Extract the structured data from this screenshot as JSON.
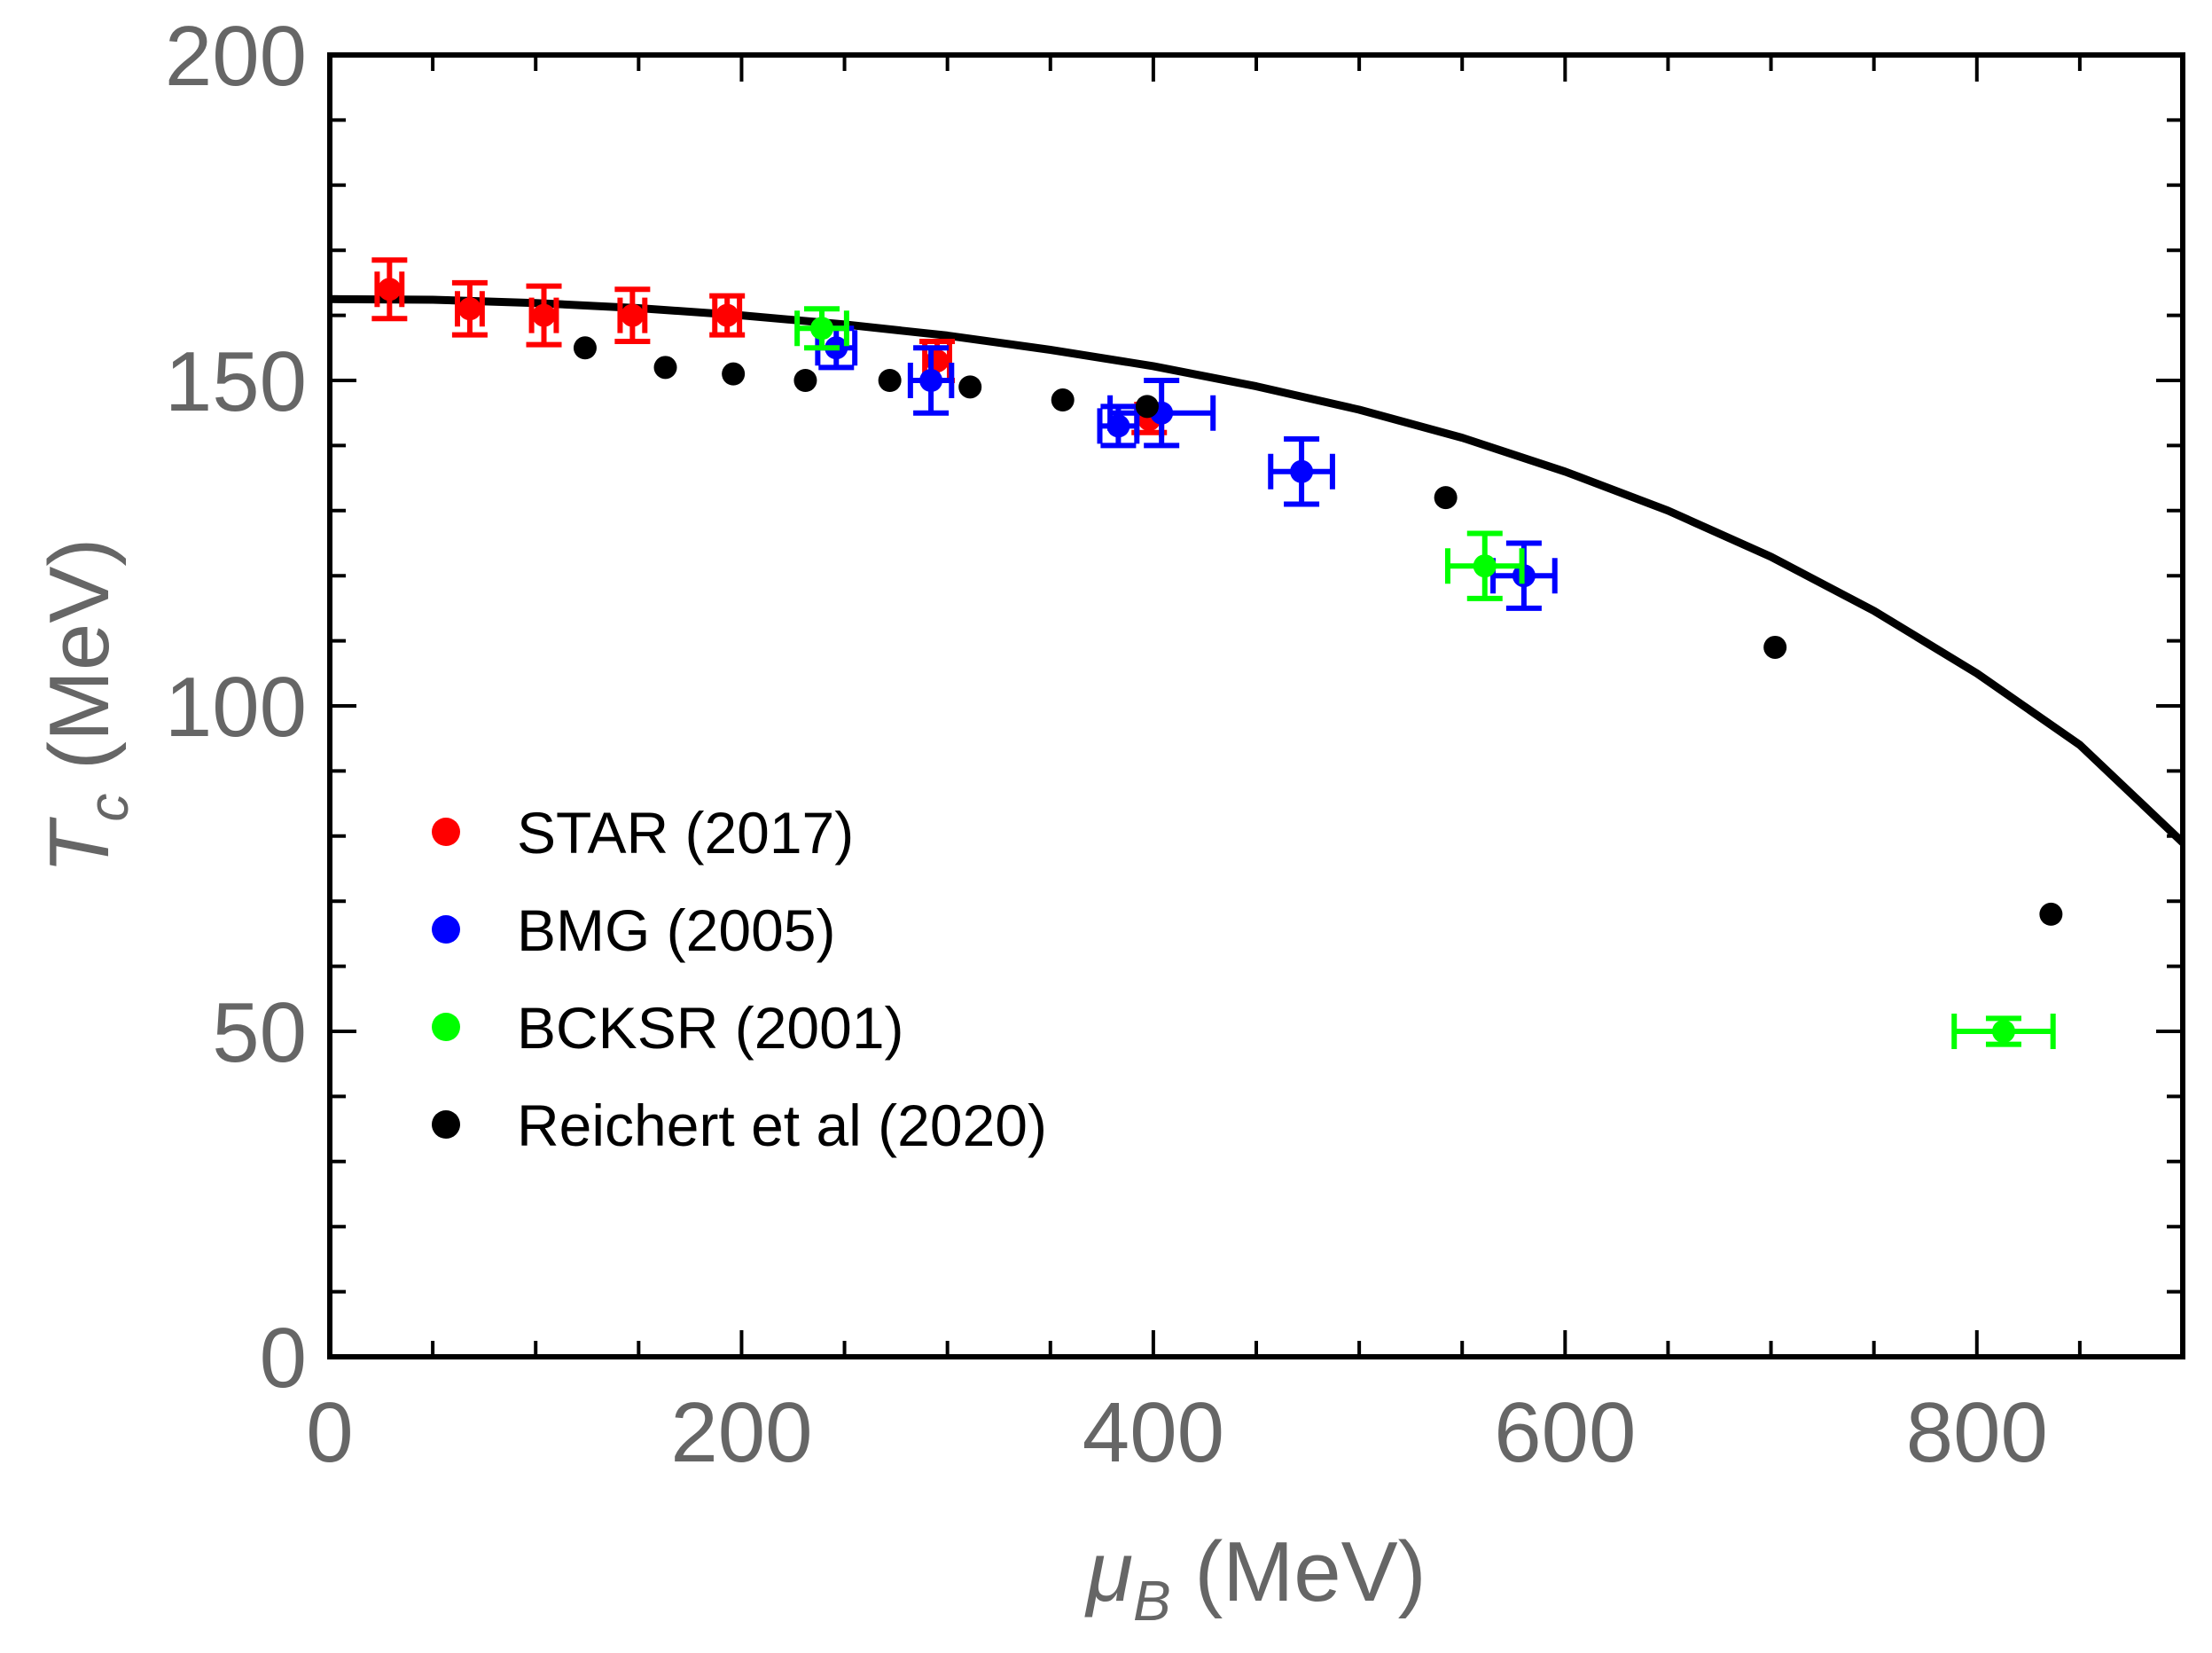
{
  "chart_data": {
    "type": "scatter",
    "title": "",
    "xlabel": {
      "main": "μ",
      "sub": "B",
      "unit": " (MeV)"
    },
    "ylabel": {
      "main": "T",
      "sub": "c",
      "unit": " (MeV)"
    },
    "xlim": [
      0,
      900
    ],
    "ylim": [
      0,
      200
    ],
    "x_ticks": [
      0,
      200,
      400,
      600,
      800
    ],
    "x_tick_labels": [
      "0",
      "200",
      "400",
      "600",
      "800"
    ],
    "y_ticks": [
      0,
      50,
      100,
      150,
      200
    ],
    "y_tick_labels": [
      "0",
      "50",
      "100",
      "150",
      "200"
    ],
    "x_minor_step": 50,
    "y_minor_step": 10,
    "legend_position": "center-left",
    "curve": {
      "name": "model curve",
      "color": "#000000",
      "x": [
        0,
        50,
        100,
        150,
        200,
        250,
        300,
        350,
        400,
        450,
        500,
        550,
        600,
        650,
        700,
        750,
        800,
        850,
        900
      ],
      "y": [
        162.5,
        162.4,
        161.9,
        161.1,
        160.0,
        158.6,
        156.9,
        154.7,
        152.2,
        149.1,
        145.5,
        141.2,
        136.0,
        130.0,
        122.9,
        114.6,
        105.0,
        94.0,
        79.0
      ]
    },
    "series": [
      {
        "name": "STAR (2017)",
        "color": "#ff0000",
        "x": [
          29,
          68,
          104,
          147,
          193,
          295,
          398
        ],
        "y": [
          164,
          161,
          160,
          160,
          160,
          153,
          144
        ],
        "xerr": [
          6,
          6,
          6,
          6,
          6,
          6,
          6
        ],
        "yerr": [
          4.5,
          4,
          4.5,
          4,
          3,
          3,
          2
        ]
      },
      {
        "name": "BMG (2005)",
        "color": "#0000ff",
        "x": [
          246,
          292,
          383,
          404,
          472,
          580
        ],
        "y": [
          155,
          150,
          143,
          145,
          136,
          120
        ],
        "xerr": [
          9,
          10,
          9,
          25,
          15,
          15
        ],
        "yerr": [
          3,
          5,
          3,
          5,
          5,
          5
        ]
      },
      {
        "name": "BCKSR (2001)",
        "color": "#00ff00",
        "x": [
          239,
          561,
          813
        ],
        "y": [
          158,
          121.5,
          50
        ],
        "xerr": [
          12,
          18,
          24
        ],
        "yerr": [
          3,
          5,
          2
        ]
      },
      {
        "name": "Reichert et al (2020)",
        "color": "#000000",
        "x": [
          124,
          163,
          196,
          231,
          272,
          311,
          356,
          397,
          542,
          702,
          836
        ],
        "y": [
          155,
          152,
          151,
          150,
          150,
          149,
          147,
          146,
          132,
          109,
          68
        ],
        "xerr": [],
        "yerr": []
      }
    ]
  }
}
